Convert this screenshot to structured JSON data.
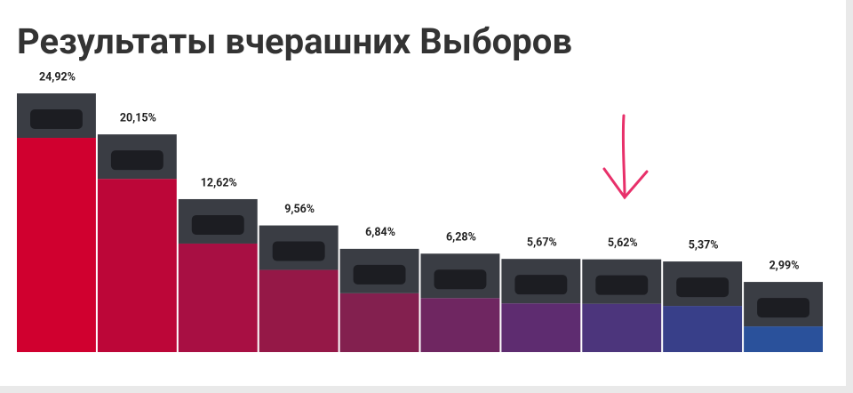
{
  "chart_data": {
    "type": "bar",
    "title": "Результаты вчерашних Выборов",
    "values": [
      24.92,
      20.15,
      12.62,
      9.56,
      6.84,
      6.28,
      5.67,
      5.62,
      5.37,
      2.99
    ],
    "value_labels": [
      "24,92%",
      "20,15%",
      "12,62%",
      "9,56%",
      "6,84%",
      "6,28%",
      "5,67%",
      "5,62%",
      "5,37%",
      "2,99%"
    ],
    "colors": [
      "#d0002f",
      "#bc0638",
      "#a80f43",
      "#951847",
      "#83204f",
      "#6f2661",
      "#5e2c70",
      "#4c357c",
      "#383f89",
      "#2a519b"
    ]
  }
}
